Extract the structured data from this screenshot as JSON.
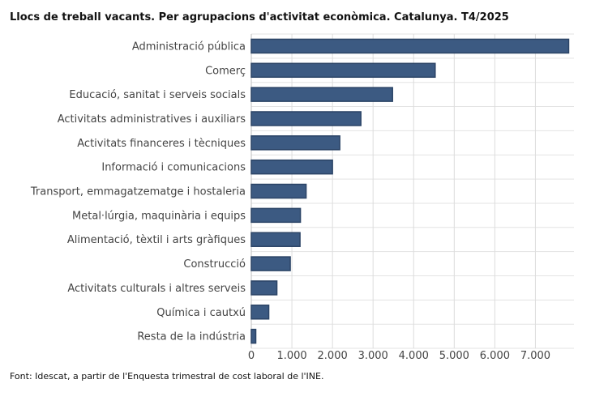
{
  "chart_data": {
    "type": "bar",
    "orientation": "horizontal",
    "title": "Llocs de treball vacants. Per agrupacions d'activitat econòmica. Catalunya. T4/2025",
    "categories": [
      "Administració pública",
      "Comerç",
      "Educació, sanitat i serveis socials",
      "Activitats administratives i auxiliars",
      "Activitats financeres i tècniques",
      "Informació i comunicacions",
      "Transport, emmagatzematge i hostaleria",
      "Metal·lúrgia, maquinària i equips",
      "Alimentació, tèxtil i arts gràfiques",
      "Construcció",
      "Activitats culturals i altres serveis",
      "Química i cautxú",
      "Resta de la indústria"
    ],
    "values": [
      7820,
      4530,
      3480,
      2700,
      2180,
      2000,
      1350,
      1210,
      1200,
      960,
      630,
      430,
      110
    ],
    "xlim": [
      0,
      7950
    ],
    "ticks": [
      0,
      1000,
      2000,
      3000,
      4000,
      5000,
      6000,
      7000
    ],
    "tick_labels": [
      "0",
      "1.000",
      "2.000",
      "3.000",
      "4.000",
      "5.000",
      "6.000",
      "7.000"
    ],
    "grid": true,
    "bar_color": "#3c5a82",
    "bar_edge_color": "#2b4466"
  },
  "source": "Font: Idescat, a partir de l'Enquesta trimestral de cost laboral de l'INE."
}
